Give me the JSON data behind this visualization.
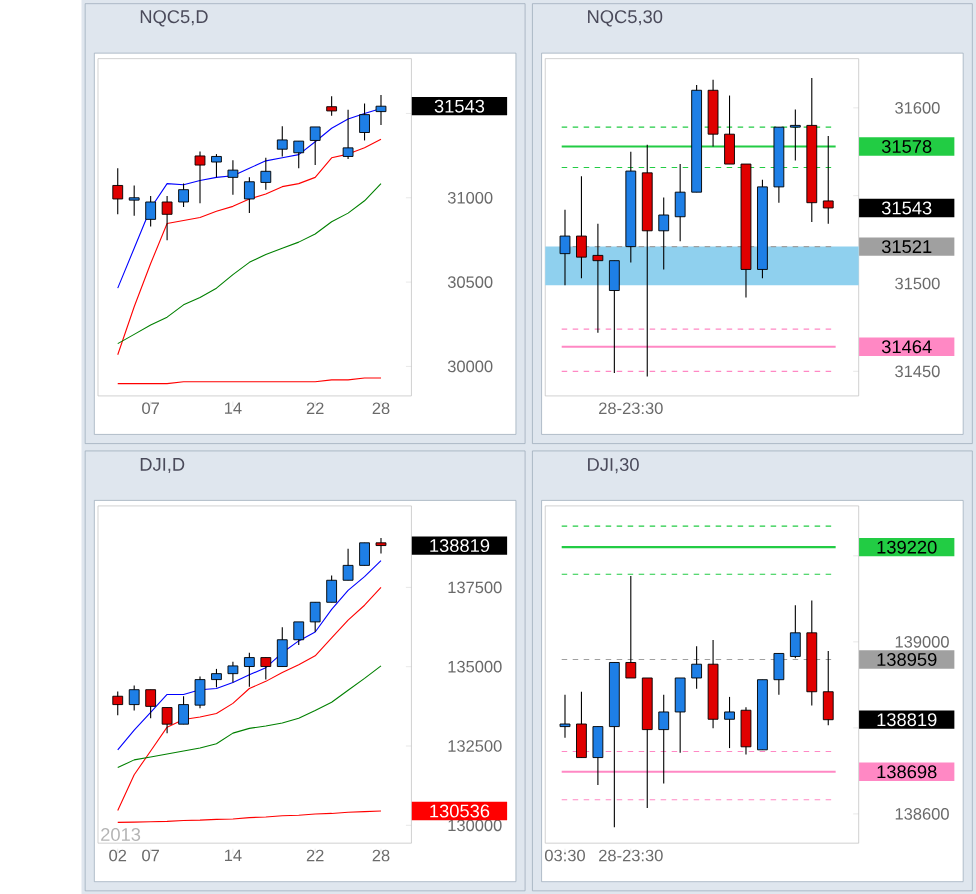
{
  "chart_data": [
    {
      "type": "candlestick",
      "title": "NQC5,D",
      "categories": [
        null,
        null,
        "07",
        null,
        null,
        null,
        null,
        "14",
        null,
        null,
        null,
        null,
        "22",
        null,
        null,
        null,
        "28"
      ],
      "ohlc": [
        [
          31073,
          31175,
          30902,
          30993
        ],
        [
          30986,
          31073,
          30894,
          31000
        ],
        [
          30872,
          31011,
          30829,
          30975
        ],
        [
          30975,
          31011,
          30748,
          30902
        ],
        [
          30975,
          31084,
          30945,
          31048
        ],
        [
          31248,
          31274,
          30967,
          31194
        ],
        [
          31212,
          31259,
          31121,
          31245
        ],
        [
          31121,
          31223,
          31018,
          31164
        ],
        [
          30993,
          31121,
          30909,
          31095
        ],
        [
          31091,
          31237,
          31048,
          31157
        ],
        [
          31288,
          31424,
          31245,
          31343
        ],
        [
          31267,
          31336,
          31175,
          31336
        ],
        [
          31340,
          31420,
          31194,
          31420
        ],
        [
          31540,
          31602,
          31486,
          31515
        ],
        [
          31245,
          31522,
          31230,
          31296
        ],
        [
          31387,
          31559,
          31340,
          31493
        ],
        [
          31511,
          31610,
          31431,
          31543
        ]
      ],
      "series": [
        {
          "type": "line",
          "color": "#0000ff",
          "values": [
            30464,
            30701,
            30938,
            31084,
            31077,
            31102,
            31121,
            31131,
            31175,
            31219,
            31237,
            31256,
            31332,
            31412,
            31467,
            31500,
            31529
          ]
        },
        {
          "type": "line",
          "color": "#ff0000",
          "values": [
            30069,
            30354,
            30610,
            30847,
            30865,
            30883,
            30920,
            30949,
            30993,
            31022,
            31066,
            31084,
            31121,
            31237,
            31259,
            31296,
            31347
          ]
        },
        {
          "type": "line",
          "color": "#008000",
          "values": [
            30135,
            30190,
            30245,
            30292,
            30365,
            30409,
            30464,
            30544,
            30617,
            30664,
            30701,
            30737,
            30785,
            30858,
            30909,
            30982,
            31084
          ]
        },
        {
          "type": "line",
          "color": "#ff0000",
          "values": [
            29898,
            29898,
            29898,
            29898,
            29909,
            29909,
            29909,
            29909,
            29909,
            29909,
            29909,
            29909,
            29909,
            29920,
            29920,
            29931,
            29931
          ]
        }
      ],
      "ylim": [
        29825,
        31825
      ],
      "yticks": [
        30000,
        30500,
        31000,
        {
          "value": 31500,
          "label": null
        }
      ],
      "annotations": [
        "31543"
      ]
    },
    {
      "type": "candlestick",
      "title": "NQC5,30",
      "categories": [
        null,
        null,
        null,
        null,
        "28-23:30",
        null,
        null,
        null,
        null,
        null,
        null,
        null,
        null,
        null,
        null,
        null,
        null
      ],
      "ohlc": [
        [
          31517,
          31542,
          31499,
          31527
        ],
        [
          31527,
          31561,
          31503,
          31515
        ],
        [
          31516,
          31534,
          31472,
          31513
        ],
        [
          31496,
          31513,
          31449,
          31513
        ],
        [
          31521,
          31575,
          31512,
          31564
        ],
        [
          31563,
          31579,
          31447,
          31530
        ],
        [
          31530,
          31549,
          31508,
          31539
        ],
        [
          31538,
          31568,
          31524,
          31552
        ],
        [
          31552,
          31613,
          31552,
          31610
        ],
        [
          31610,
          31616,
          31578,
          31585
        ],
        [
          31585,
          31607,
          31568,
          31568
        ],
        [
          31568,
          31568,
          31492,
          31508
        ],
        [
          31508,
          31559,
          31503,
          31555
        ],
        [
          31555,
          31589,
          31546,
          31589
        ],
        [
          31589,
          31599,
          31570,
          31590
        ],
        [
          31590,
          31617,
          31535,
          31546
        ],
        [
          31547,
          31584,
          31534,
          31543
        ]
      ],
      "ylim": [
        31436,
        31628
      ],
      "yticks": [
        31450,
        31500,
        {
          "value": 31550,
          "label": null
        },
        31600
      ],
      "bands": [
        {
          "axis": "y",
          "from": 31499,
          "to": 31521,
          "color": "#8fd0ee"
        }
      ],
      "annotations": [
        "31543"
      ],
      "ref_lines": [
        {
          "axis": "y",
          "value": 31589,
          "color": "#22cc44",
          "line_style": "dashed"
        },
        {
          "axis": "y",
          "value": 31578,
          "label": "31578",
          "color": "#22cc44",
          "line_style": "solid"
        },
        {
          "axis": "y",
          "value": 31566,
          "color": "#22cc44",
          "line_style": "dashed"
        },
        {
          "axis": "y",
          "value": 31521,
          "label": "31521",
          "color": "#a0a0a0",
          "line_style": "dashed"
        },
        {
          "axis": "y",
          "value": 31474,
          "color": "#ff88c4",
          "line_style": "dashed"
        },
        {
          "axis": "y",
          "value": 31464,
          "label": "31464",
          "color": "#ff88c4",
          "line_style": "solid"
        },
        {
          "axis": "y",
          "value": 31450,
          "color": "#ff88c4",
          "line_style": "dashed"
        }
      ]
    },
    {
      "type": "candlestick",
      "title": "DJI,D",
      "categories": [
        "02",
        null,
        "07",
        null,
        null,
        null,
        null,
        "14",
        null,
        null,
        null,
        null,
        "22",
        null,
        null,
        null,
        "28"
      ],
      "ohlc": [
        [
          134069,
          134219,
          133469,
          133806
        ],
        [
          133806,
          134406,
          133619,
          134275
        ],
        [
          134275,
          134275,
          133375,
          133750
        ],
        [
          133713,
          133713,
          132906,
          133188
        ],
        [
          133188,
          134069,
          133188,
          133806
        ],
        [
          133788,
          134688,
          133694,
          134594
        ],
        [
          134594,
          134931,
          134350,
          134781
        ],
        [
          134781,
          135156,
          134500,
          135025
        ],
        [
          135006,
          135438,
          134369,
          135288
        ],
        [
          135288,
          135288,
          134594,
          135006
        ],
        [
          135006,
          136244,
          135006,
          135850
        ],
        [
          135850,
          136413,
          135681,
          136413
        ],
        [
          136413,
          137031,
          136094,
          137031
        ],
        [
          137031,
          137875,
          137031,
          137725
        ],
        [
          137725,
          138719,
          137725,
          138194
        ],
        [
          138194,
          138906,
          138194,
          138906
        ],
        [
          138906,
          139056,
          138569,
          138819
        ]
      ],
      "series": [
        {
          "type": "line",
          "color": "#0000ff",
          "values": [
            132381,
            133000,
            133563,
            134125,
            134125,
            134275,
            134313,
            134500,
            134744,
            134969,
            135438,
            135813,
            136094,
            136806,
            137406,
            137838,
            138344
          ]
        },
        {
          "type": "line",
          "color": "#ff0000",
          "values": [
            130469,
            131594,
            132344,
            133094,
            133338,
            133413,
            133525,
            133844,
            134313,
            134538,
            134819,
            135063,
            135344,
            135906,
            136469,
            136938,
            137500
          ]
        },
        {
          "type": "line",
          "color": "#008000",
          "values": [
            131819,
            132063,
            132156,
            132250,
            132344,
            132438,
            132569,
            132906,
            133056,
            133131,
            133225,
            133375,
            133619,
            133881,
            134256,
            134631,
            135025
          ]
        },
        {
          "type": "line",
          "color": "#ff0000",
          "values": [
            130094,
            130100,
            130113,
            130125,
            130150,
            130163,
            130188,
            130200,
            130244,
            130263,
            130300,
            130319,
            130356,
            130375,
            130413,
            130431,
            130450
          ]
        }
      ],
      "ylim": [
        129437,
        140069
      ],
      "yticks": [
        130000,
        132500,
        135000,
        137500
      ],
      "xlabel": "2013",
      "annotations": [
        "138819",
        "130536"
      ]
    },
    {
      "type": "candlestick",
      "title": "DJI,30",
      "categories": [
        "03:30",
        null,
        null,
        null,
        "28-23:30",
        null,
        null,
        null,
        null,
        null,
        null,
        null,
        null,
        null,
        null,
        null,
        null
      ],
      "ohlc": [
        [
          138803,
          138877,
          138777,
          138809
        ],
        [
          138809,
          138884,
          138731,
          138731
        ],
        [
          138731,
          138803,
          138667,
          138803
        ],
        [
          138803,
          138952,
          138569,
          138952
        ],
        [
          138952,
          139153,
          138916,
          138916
        ],
        [
          138916,
          138916,
          138614,
          138796
        ],
        [
          138796,
          138877,
          138671,
          138837
        ],
        [
          138837,
          138916,
          138742,
          138916
        ],
        [
          138916,
          138990,
          138891,
          138948
        ],
        [
          138948,
          139004,
          138799,
          138820
        ],
        [
          138820,
          138872,
          138753,
          138837
        ],
        [
          138841,
          138848,
          138738,
          138756
        ],
        [
          138749,
          138912,
          138749,
          138912
        ],
        [
          138912,
          138973,
          138877,
          138973
        ],
        [
          138966,
          139085,
          138962,
          139021
        ],
        [
          139021,
          139096,
          138852,
          138884
        ],
        [
          138884,
          138979,
          138806,
          138819
        ]
      ],
      "ylim": [
        138532,
        139316
      ],
      "yticks": [
        138600,
        {
          "value": 138800,
          "label": null
        },
        139000,
        {
          "value": 139200,
          "label": null
        }
      ],
      "ref_lines": [
        {
          "axis": "y",
          "value": 139269,
          "color": "#22cc44",
          "line_style": "dashed"
        },
        {
          "axis": "y",
          "value": 139220,
          "label": "139220",
          "color": "#22cc44",
          "line_style": "solid"
        },
        {
          "axis": "y",
          "value": 139157,
          "color": "#22cc44",
          "line_style": "dashed"
        },
        {
          "axis": "y",
          "value": 138959,
          "label": "138959",
          "color": "#a0a0a0",
          "line_style": "dashed"
        },
        {
          "axis": "y",
          "value": 138745,
          "color": "#ff88c4",
          "line_style": "dashed"
        },
        {
          "axis": "y",
          "value": 138698,
          "label": "138698",
          "color": "#ff88c4",
          "line_style": "solid"
        },
        {
          "axis": "y",
          "value": 138633,
          "color": "#ff88c4",
          "line_style": "dashed"
        }
      ],
      "annotations": [
        "138819"
      ]
    }
  ]
}
